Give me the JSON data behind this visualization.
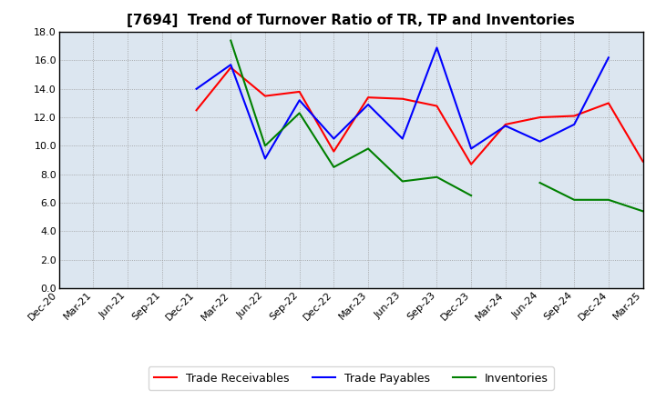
{
  "title": "[7694]  Trend of Turnover Ratio of TR, TP and Inventories",
  "x_labels": [
    "Dec-20",
    "Mar-21",
    "Jun-21",
    "Sep-21",
    "Dec-21",
    "Mar-22",
    "Jun-22",
    "Sep-22",
    "Dec-22",
    "Mar-23",
    "Jun-23",
    "Sep-23",
    "Dec-23",
    "Mar-24",
    "Jun-24",
    "Sep-24",
    "Dec-24",
    "Mar-25"
  ],
  "trade_receivables": [
    null,
    null,
    null,
    null,
    12.5,
    15.5,
    13.5,
    13.8,
    9.6,
    13.4,
    13.3,
    12.8,
    8.7,
    11.5,
    12.0,
    12.1,
    13.0,
    8.9
  ],
  "trade_payables": [
    null,
    null,
    null,
    null,
    14.0,
    15.7,
    9.1,
    13.2,
    10.5,
    12.9,
    10.5,
    16.9,
    9.8,
    11.4,
    10.3,
    11.5,
    16.2,
    null
  ],
  "inventories": [
    null,
    null,
    null,
    null,
    null,
    17.4,
    10.0,
    12.3,
    8.5,
    9.8,
    7.5,
    7.8,
    6.5,
    null,
    7.4,
    6.2,
    6.2,
    5.4
  ],
  "ylim": [
    0,
    18.0
  ],
  "yticks": [
    0.0,
    2.0,
    4.0,
    6.0,
    8.0,
    10.0,
    12.0,
    14.0,
    16.0,
    18.0
  ],
  "color_tr": "#ff0000",
  "color_tp": "#0000ff",
  "color_inv": "#008000",
  "legend_labels": [
    "Trade Receivables",
    "Trade Payables",
    "Inventories"
  ],
  "bg_color": "#ffffff",
  "plot_bg_color": "#dce6f0",
  "grid_color": "#999999",
  "title_fontsize": 11,
  "tick_fontsize": 8,
  "legend_fontsize": 9
}
